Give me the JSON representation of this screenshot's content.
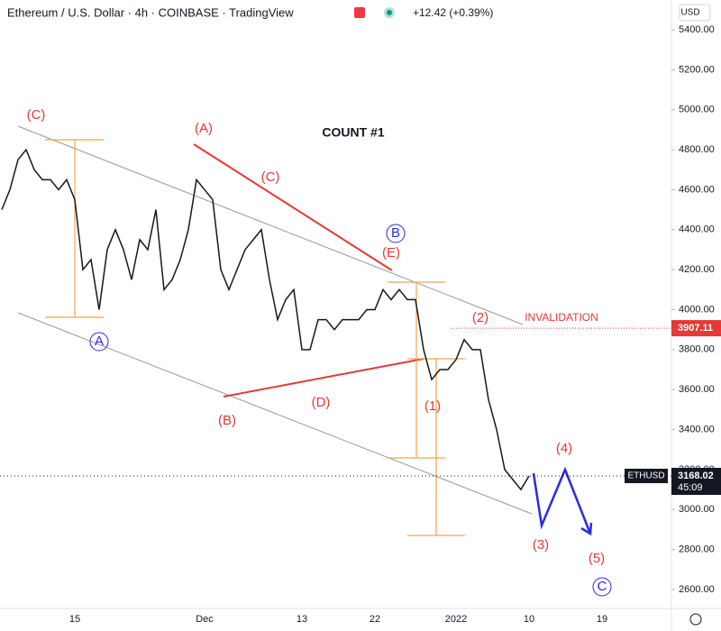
{
  "chart_data": {
    "type": "line",
    "title": "Ethereum / U.S. Dollar · 4h · COINBASE · TradingView",
    "change": "+12.42 (+0.39%)",
    "currency": "USD",
    "symbol": "ETHUSD",
    "countdown": "45:09",
    "last_price": 3168.02,
    "invalidation_price": 3907.11,
    "color": "#131722",
    "categories": [
      null,
      null,
      null,
      null,
      null,
      null,
      null,
      null,
      null,
      "15",
      null,
      null,
      null,
      null,
      null,
      null,
      null,
      null,
      null,
      null,
      null,
      null,
      null,
      null,
      null,
      "Dec",
      null,
      null,
      null,
      null,
      null,
      null,
      null,
      null,
      null,
      null,
      null,
      "13",
      null,
      null,
      null,
      null,
      null,
      null,
      null,
      null,
      "22",
      null,
      null,
      null,
      null,
      null,
      null,
      null,
      null,
      null,
      "2022",
      null,
      null,
      null,
      null,
      null,
      null,
      null,
      null,
      "10",
      null,
      null,
      null,
      null,
      null,
      null,
      null,
      null,
      "19",
      null,
      null,
      null,
      null,
      null,
      null,
      null,
      null
    ],
    "values": [
      4500,
      4600,
      4750,
      4800,
      4700,
      4650,
      4650,
      4600,
      4650,
      4550,
      4200,
      4250,
      4000,
      4300,
      4400,
      4300,
      4150,
      4350,
      4300,
      4500,
      4100,
      4150,
      4250,
      4400,
      4650,
      4600,
      4550,
      4200,
      4100,
      4200,
      4300,
      4350,
      4400,
      4150,
      3950,
      4050,
      4100,
      3800,
      3800,
      3950,
      3950,
      3900,
      3950,
      3950,
      3950,
      4000,
      4000,
      4100,
      4050,
      4100,
      4050,
      4050,
      3800,
      3650,
      3700,
      3700,
      3750,
      3850,
      3800,
      3800,
      3550,
      3400,
      3200,
      3150,
      3100,
      3168.02,
      null,
      null,
      null,
      null,
      null,
      null,
      null,
      null,
      null,
      null,
      null,
      null,
      null,
      null,
      null,
      null,
      null
    ],
    "ylim": [
      2505,
      5549
    ],
    "yticks": [
      {
        "value": 2600,
        "label": "2600.00"
      },
      {
        "value": 2800,
        "label": "2800.00"
      },
      {
        "value": 3000,
        "label": "3000.00"
      },
      {
        "value": 3200,
        "label": "3200.00"
      },
      {
        "value": 3400,
        "label": "3400.00"
      },
      {
        "value": 3600,
        "label": "3600.00"
      },
      {
        "value": 3800,
        "label": "3800.00"
      },
      {
        "value": 4000,
        "label": "4000.00"
      },
      {
        "value": 4200,
        "label": "4200.00"
      },
      {
        "value": 4400,
        "label": "4400.00"
      },
      {
        "value": 4600,
        "label": "4600.00"
      },
      {
        "value": 4800,
        "label": "4800.00"
      },
      {
        "value": 5000,
        "label": "5000.00"
      },
      {
        "value": 5200,
        "label": "5200.00"
      },
      {
        "value": 5400,
        "label": "5400.00"
      }
    ],
    "grid": false,
    "annotations": [
      "COUNT #1",
      "INVALIDATION",
      "(C)",
      "(A)",
      "(C)",
      "(B)",
      "(D)",
      "(E)",
      "B",
      "A",
      "(1)",
      "(2)",
      "(3)",
      "(4)",
      "(5)",
      "C"
    ]
  }
}
